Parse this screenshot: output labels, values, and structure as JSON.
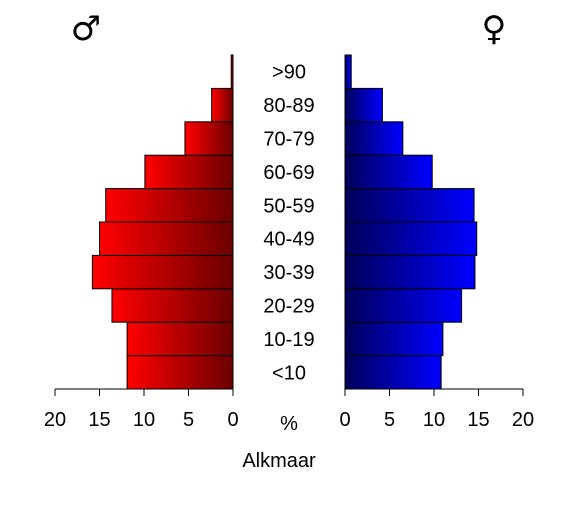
{
  "chart_data": {
    "type": "bar",
    "orientation": "horizontal-population-pyramid",
    "title": "Alkmaar",
    "categories": [
      "<10",
      "10-19",
      "20-29",
      "30-39",
      "40-49",
      "50-59",
      "60-69",
      "70-79",
      "80-89",
      ">90"
    ],
    "series": [
      {
        "name": "♂",
        "values": [
          11.9,
          11.9,
          13.6,
          15.8,
          15.0,
          14.3,
          9.9,
          5.4,
          2.4,
          0.2
        ],
        "color_dark": "#6b0000",
        "color_light": "#ff0000"
      },
      {
        "name": "♀",
        "values": [
          10.8,
          11.0,
          13.1,
          14.6,
          14.8,
          14.5,
          9.8,
          6.5,
          4.2,
          0.7
        ],
        "color_dark": "#00005a",
        "color_light": "#0000ff"
      }
    ],
    "xlim": [
      0,
      20
    ],
    "ticks_left": [
      "20",
      "15",
      "10",
      "5",
      "0"
    ],
    "ticks_right": [
      "0",
      "5",
      "10",
      "15",
      "20"
    ],
    "unit_label": "%",
    "grid": false,
    "legend": "none"
  }
}
